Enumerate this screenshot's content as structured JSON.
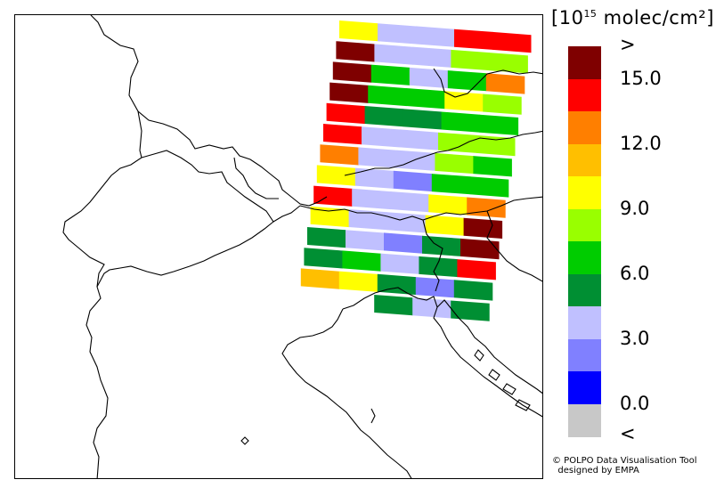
{
  "legend": {
    "unit_prefix": "10",
    "unit_exponent": "15",
    "unit_suffix": "molec/cm²",
    "bracket_open": "[",
    "bracket_close": "]",
    "classes": [
      {
        "color": "#7f0000"
      },
      {
        "color": "#ff0000"
      },
      {
        "color": "#ff7f00"
      },
      {
        "color": "#ffbf00"
      },
      {
        "color": "#ffff00"
      },
      {
        "color": "#99ff00"
      },
      {
        "color": "#00cc00"
      },
      {
        "color": "#008f33"
      },
      {
        "color": "#c0c0ff"
      },
      {
        "color": "#8080ff"
      },
      {
        "color": "#0000ff"
      },
      {
        "color": "#c8c8c8"
      }
    ],
    "labels": [
      ">",
      "15.0",
      "12.0",
      "9.0",
      "6.0",
      "3.0",
      "0.0",
      "<"
    ]
  },
  "credit": {
    "line1": "© POLPO Data Visualisation Tool",
    "line2": "designed by EMPA"
  },
  "pixel_rows": [
    [
      "yellow",
      "lightblue",
      "lightblue",
      "red",
      "red"
    ],
    [
      "darkred",
      "lightblue",
      "lightblue",
      "lightgreen",
      "lightgreen"
    ],
    [
      "darkred",
      "green",
      "lightblue",
      "green",
      "orange"
    ],
    [
      "darkred",
      "green",
      "green",
      "yellow",
      "lightgreen"
    ],
    [
      "red",
      "darkgreen",
      "darkgreen",
      "green",
      "green"
    ],
    [
      "red",
      "lightblue",
      "lightblue",
      "lightgreen",
      "lightgreen"
    ],
    [
      "orange",
      "lightblue",
      "lightblue",
      "lightgreen",
      "green"
    ],
    [
      "yellow",
      "lightblue",
      "midblue",
      "green",
      "green"
    ],
    [
      "red",
      "lightblue",
      "lightblue",
      "yellow",
      "orange"
    ],
    [
      "yellow",
      "lightblue",
      "lightblue",
      "yellow",
      "darkred"
    ],
    [
      "darkgreen",
      "lightblue",
      "midblue",
      "darkgreen",
      "darkred"
    ],
    [
      "darkgreen",
      "green",
      "lightblue",
      "darkgreen",
      "red"
    ],
    [
      "amber",
      "yellow",
      "darkgreen",
      "midblue",
      "darkgreen"
    ],
    [
      "",
      "",
      "darkgreen",
      "lightblue",
      "darkgreen"
    ]
  ],
  "palette": {
    "darkred": "#7f0000",
    "red": "#ff0000",
    "orange": "#ff7f00",
    "amber": "#ffbf00",
    "yellow": "#ffff00",
    "lightgreen": "#99ff00",
    "green": "#00cc00",
    "darkgreen": "#008f33",
    "lightblue": "#c0c0ff",
    "midblue": "#8080ff",
    "blue": "#0000ff",
    "grey": "#c8c8c8"
  }
}
